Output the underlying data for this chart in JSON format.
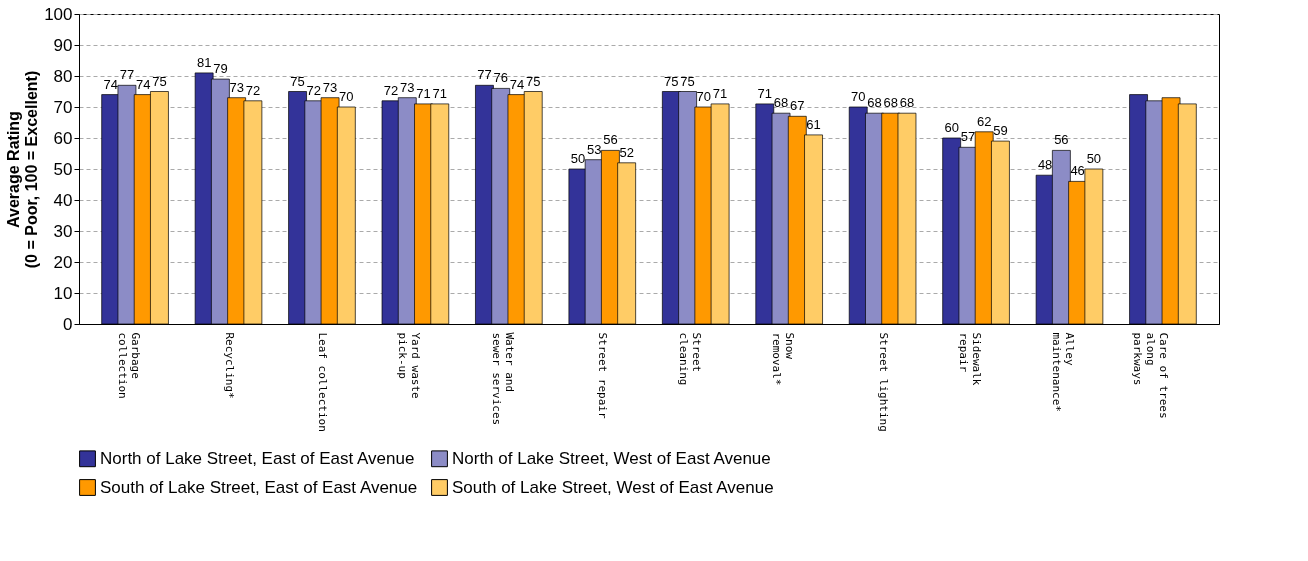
{
  "chart_data": {
    "type": "bar",
    "ylabel": "Average Rating\n(0 = Poor, 100 = Excellent)",
    "categories": [
      "Garbage\ncollection",
      "Recycling*",
      "Leaf collection",
      "Yard waste\npick-up",
      "Water and\nsewer services",
      "Street repair",
      "Street\ncleaning",
      "Snow\nremoval*",
      "Street lighting",
      "Sidewalk\nrepair",
      "Alley\nmaintenance*",
      "Care of trees\nalong\nparkways"
    ],
    "series": [
      {
        "name": "North of Lake Street, East of East Avenue",
        "color": "#333399",
        "values": [
          74,
          81,
          75,
          72,
          77,
          50,
          75,
          71,
          70,
          60,
          48,
          74
        ],
        "value_labels": [
          "74",
          "81",
          "75",
          "72",
          "77",
          "50",
          "75",
          "71",
          "70",
          "60",
          "48",
          null
        ]
      },
      {
        "name": "North of Lake Street, West of East Avenue",
        "color": "#8c8cc6",
        "values": [
          77,
          79,
          72,
          73,
          76,
          53,
          75,
          68,
          68,
          57,
          56,
          72
        ],
        "value_labels": [
          "77",
          "79",
          "72",
          "73",
          "76",
          "53",
          "75",
          "68",
          "68",
          "57",
          "56",
          null
        ]
      },
      {
        "name": "South of Lake Street, East of East Avenue",
        "color": "#ff9900",
        "values": [
          74,
          73,
          73,
          71,
          74,
          56,
          70,
          67,
          68,
          62,
          46,
          73
        ],
        "value_labels": [
          "74",
          "73",
          "73",
          "71",
          "74",
          "56",
          "70",
          "67",
          "68",
          "62",
          "46",
          null
        ]
      },
      {
        "name": "South of Lake Street, West of East Avenue",
        "color": "#ffcc66",
        "values": [
          75,
          72,
          70,
          71,
          75,
          52,
          71,
          61,
          68,
          59,
          50,
          71
        ],
        "value_labels": [
          "75",
          "72",
          "70",
          "71",
          "75",
          "52",
          "71",
          "61",
          "68",
          "59",
          "50",
          null
        ]
      }
    ],
    "ylim": [
      0,
      100
    ],
    "yticks": [
      0,
      10,
      20,
      30,
      40,
      50,
      60,
      70,
      80,
      90,
      100
    ],
    "grid": "y",
    "legend": "bottom"
  }
}
